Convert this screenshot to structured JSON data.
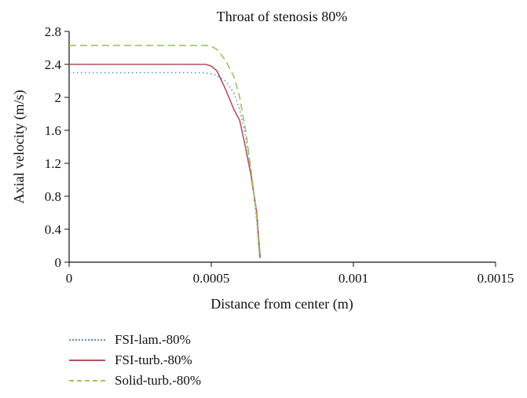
{
  "chart_data": {
    "type": "line",
    "title": "Throat of stenosis 80%",
    "xlabel": "Distance from center (m)",
    "ylabel": "Axial velocity (m/s)",
    "xlim": [
      0,
      0.0015
    ],
    "ylim": [
      0,
      2.8
    ],
    "xticks": [
      0,
      0.0005,
      0.001,
      0.0015
    ],
    "xtick_labels": [
      "0",
      "0.0005",
      "0.001",
      "0.0015"
    ],
    "yticks": [
      0,
      0.4,
      0.8,
      1.2,
      1.6,
      2,
      2.4,
      2.8
    ],
    "ytick_labels": [
      "0",
      "0.4",
      "0.8",
      "1.2",
      "1.6",
      "2",
      "2.4",
      "2.8"
    ],
    "grid": false,
    "legend_position": "bottom-left",
    "series": [
      {
        "name": "FSI-lam.-80%",
        "color": "#5b8fc9",
        "dash": "dotted",
        "x": [
          0,
          0.0004,
          0.00047,
          0.00051,
          0.00055,
          0.00058,
          0.0006,
          0.00062,
          0.00064,
          0.00066,
          0.00067
        ],
        "y": [
          2.3,
          2.3,
          2.3,
          2.28,
          2.2,
          2.05,
          1.85,
          1.55,
          1.1,
          0.5,
          0.05
        ]
      },
      {
        "name": "FSI-turb.-80%",
        "color": "#b5525e",
        "dash": "solid",
        "x": [
          0,
          0.00045,
          0.00048,
          0.0005,
          0.00052,
          0.00055,
          0.00058,
          0.0006,
          0.00062,
          0.00064,
          0.00066,
          0.000672
        ],
        "y": [
          2.4,
          2.4,
          2.4,
          2.38,
          2.32,
          2.1,
          1.85,
          1.72,
          1.4,
          1.05,
          0.6,
          0.05
        ]
      },
      {
        "name": "Solid-turb.-80%",
        "color": "#9fc55a",
        "dash": "dashed",
        "x": [
          0,
          0.00045,
          0.00048,
          0.0005,
          0.00052,
          0.00055,
          0.00058,
          0.0006,
          0.00062,
          0.00064,
          0.00066,
          0.00067
        ],
        "y": [
          2.63,
          2.63,
          2.63,
          2.62,
          2.58,
          2.45,
          2.25,
          2.0,
          1.62,
          1.12,
          0.55,
          0.05
        ]
      }
    ]
  }
}
